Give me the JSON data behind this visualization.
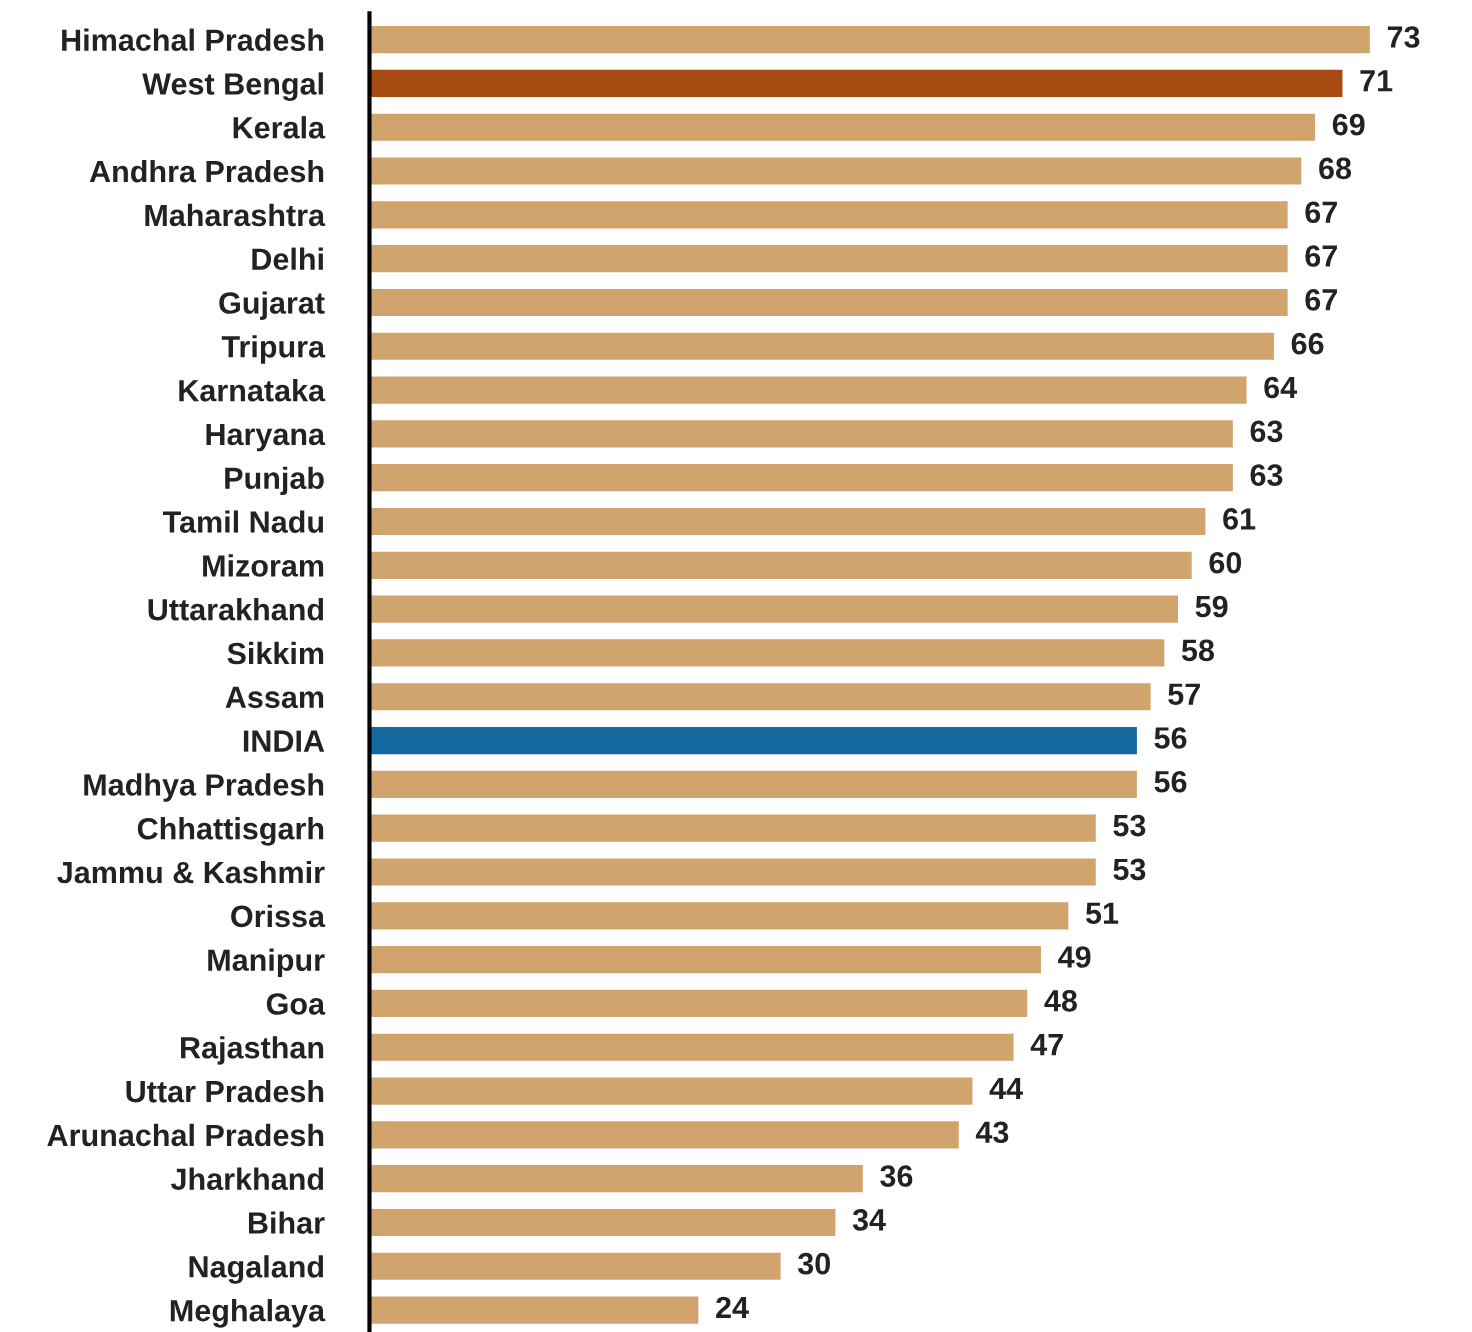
{
  "chart_data": {
    "type": "bar",
    "orientation": "horizontal",
    "data_labels": true,
    "grid": false,
    "legend": false,
    "categories": [
      "Himachal Pradesh",
      "West Bengal",
      "Kerala",
      "Andhra Pradesh",
      "Maharashtra",
      "Delhi",
      "Gujarat",
      "Tripura",
      "Karnataka",
      "Haryana",
      "Punjab",
      "Tamil Nadu",
      "Mizoram",
      "Uttarakhand",
      "Sikkim",
      "Assam",
      "INDIA",
      "Madhya Pradesh",
      "Chhattisgarh",
      "Jammu & Kashmir",
      "Orissa",
      "Manipur",
      "Goa",
      "Rajasthan",
      "Uttar Pradesh",
      "Arunachal Pradesh",
      "Jharkhand",
      "Bihar",
      "Nagaland",
      "Meghalaya"
    ],
    "values": [
      73,
      71,
      69,
      68,
      67,
      67,
      67,
      66,
      64,
      63,
      63,
      61,
      60,
      59,
      58,
      57,
      56,
      56,
      53,
      53,
      51,
      49,
      48,
      47,
      44,
      43,
      36,
      34,
      30,
      24
    ],
    "colors": [
      "#d1a46e",
      "#a84b12",
      "#d1a46e",
      "#d1a46e",
      "#d1a46e",
      "#d1a46e",
      "#d1a46e",
      "#d1a46e",
      "#d1a46e",
      "#d1a46e",
      "#d1a46e",
      "#d1a46e",
      "#d1a46e",
      "#d1a46e",
      "#d1a46e",
      "#d1a46e",
      "#1468a0",
      "#d1a46e",
      "#d1a46e",
      "#d1a46e",
      "#d1a46e",
      "#d1a46e",
      "#d1a46e",
      "#d1a46e",
      "#d1a46e",
      "#d1a46e",
      "#d1a46e",
      "#d1a46e",
      "#d1a46e",
      "#d1a46e"
    ]
  }
}
